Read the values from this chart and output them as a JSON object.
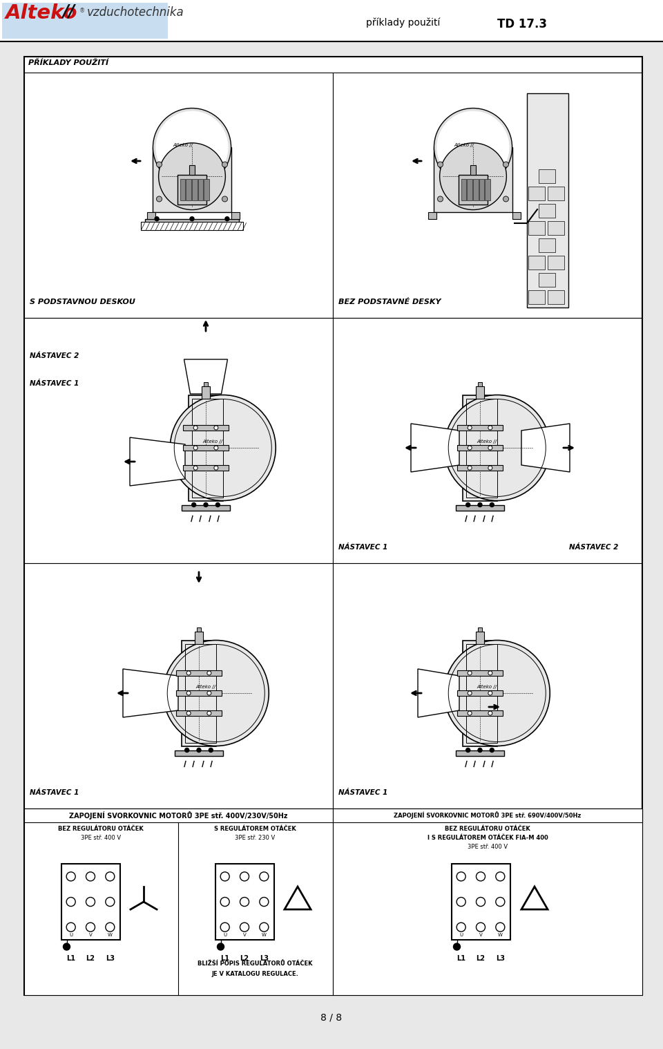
{
  "page_bg": "#e8e8e8",
  "content_bg": "#ffffff",
  "header_bg": "#ffffff",
  "border_color": "#000000",
  "header_right1": "příklady použití",
  "header_right2": "TD 17.3",
  "page_title": "PŘÍKLADY POUŽITÍ",
  "label0": "S PODSTAVNOU DESKOU",
  "label1": "BEZ PODSTAVNÉ DESKY",
  "label2a": "NÁSTAVEC 2",
  "label2b": "NÁSTAVEC 1",
  "label3a": "NÁSTAVEC 1",
  "label3b": "NÁSTAVEC 2",
  "label4": "NÁSTAVEC 1",
  "label5": "NÁSTAVEC 1",
  "bottom_left_title": "ZAPOJENÍ SVORKOVNIC MOTORŮ 3PE stř. 400V/230V/50Hz",
  "bottom_right_title": "ZAPOJENÍ SVORKOVNIC MOTORŮ 3PE stř. 690V/400V/50Hz",
  "w1_title": "BEZ REGULÁTORU OTÁČEK",
  "w1_sub": "3PE stř. 400 V",
  "w2_title": "S REGULÁTOREM OTÁČEK",
  "w2_sub": "3PE stř. 230 V",
  "w3_title1": "BEZ REGULÁTORU OTÁČEK",
  "w3_title2": "I S REGULÁTOREM OTÁČEK FIA-M 400",
  "w3_sub": "3PE stř. 400 V",
  "note1": "BLIŽŠÍ POPIS REGULÁTORŮ OTÁČEK",
  "note2": "JE V KATALOGU REGULACE.",
  "page_num": "8 / 8"
}
